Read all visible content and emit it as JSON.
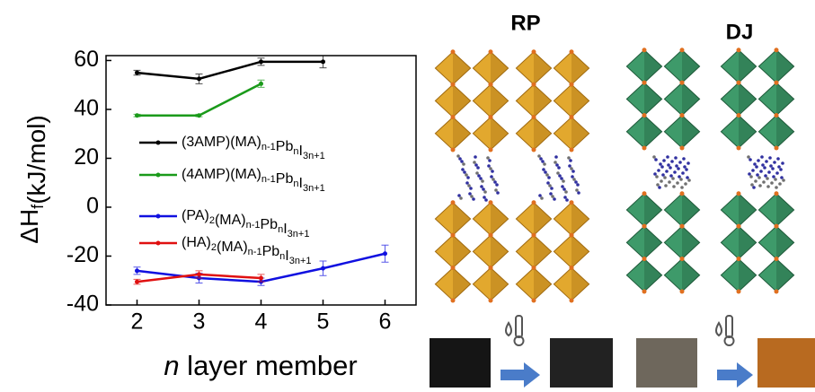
{
  "chart_data": {
    "type": "line",
    "x_label": "n layer member",
    "y_label": "ΔHf(kJ/mol)",
    "xlim": [
      1.5,
      6.5
    ],
    "xticks": [
      2,
      3,
      4,
      5,
      6
    ],
    "ylim": [
      -40,
      62
    ],
    "yticks": [
      -40,
      -20,
      0,
      20,
      40,
      60
    ],
    "series": [
      {
        "name": "(3AMP)(MA)n-1PbnI3n+1",
        "color": "#000000",
        "x": [
          2,
          3,
          4,
          5
        ],
        "values": [
          55,
          52.5,
          59.5,
          59.5
        ],
        "errors": [
          1,
          2,
          1.5,
          2.5
        ]
      },
      {
        "name": "(4AMP)(MA)n-1PbnI3n+1",
        "color": "#1a9a1a",
        "x": [
          2,
          3,
          4
        ],
        "values": [
          37.5,
          37.5,
          50.5
        ],
        "errors": [
          0.5,
          0.5,
          1.5
        ]
      },
      {
        "name": "(PA)2(MA)n-1PbnI3n+1",
        "color": "#1010e0",
        "x": [
          2,
          3,
          4,
          5,
          6
        ],
        "values": [
          -26,
          -29,
          -30.5,
          -25,
          -19
        ],
        "errors": [
          1.5,
          2,
          1.5,
          3,
          3.5
        ]
      },
      {
        "name": "(HA)2(MA)n-1PbnI3n+1",
        "color": "#e01010",
        "x": [
          2,
          3,
          4
        ],
        "values": [
          -30.5,
          -27.5,
          -29
        ],
        "errors": [
          1,
          1.5,
          1.5
        ]
      }
    ]
  },
  "structures": {
    "rp_label": "RP",
    "dj_label": "DJ"
  }
}
